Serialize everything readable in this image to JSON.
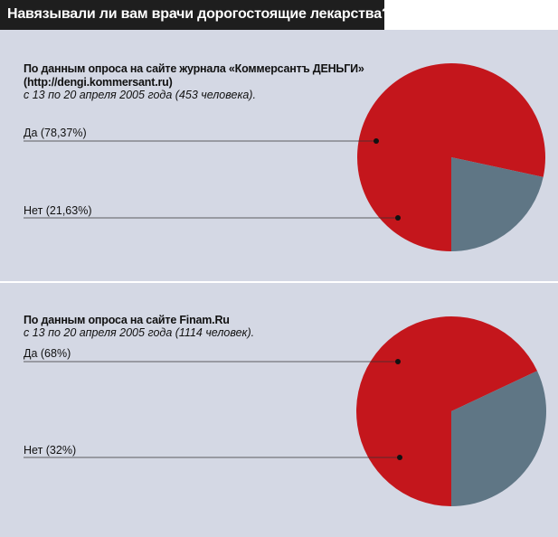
{
  "header": {
    "title": "Навязывали ли вам врачи дорогостоящие лекарства?"
  },
  "colors": {
    "red": "#c4161c",
    "gray": "#5f7685",
    "panel": "#d4d8e4"
  },
  "chart_data": [
    {
      "type": "pie",
      "source_line1": "По данным опроса на сайте журнала «Коммерсантъ ДЕНЬГИ»",
      "source_line2": "(http://dengi.kommersant.ru)",
      "period": "с 13 по 20 апреля 2005 года (453 человека).",
      "slices": [
        {
          "label": "Да (78,37%)",
          "value": 78.37,
          "color": "#c4161c"
        },
        {
          "label": "Нет (21,63%)",
          "value": 21.63,
          "color": "#5f7685"
        }
      ]
    },
    {
      "type": "pie",
      "source_line1": "По данным опроса на сайте Finam.Ru",
      "period": "с 13 по 20 апреля 2005 года (1114 человек).",
      "slices": [
        {
          "label": "Да (68%)",
          "value": 68,
          "color": "#c4161c"
        },
        {
          "label": "Нет (32%)",
          "value": 32,
          "color": "#5f7685"
        }
      ]
    }
  ]
}
